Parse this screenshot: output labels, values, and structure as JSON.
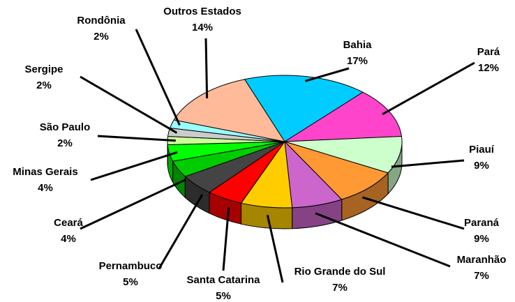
{
  "chart_data": {
    "type": "pie",
    "categories": [
      "Bahia",
      "Pará",
      "Piauí",
      "Paraná",
      "Maranhão",
      "Rio Grande do Sul",
      "Santa Catarina",
      "Pernambuco",
      "Ceará",
      "Minas Gerais",
      "São Paulo",
      "Sergipe",
      "Rondônia",
      "Outros Estados"
    ],
    "values": [
      17,
      12,
      9,
      9,
      7,
      7,
      5,
      5,
      4,
      4,
      2,
      2,
      2,
      14
    ],
    "value_labels": [
      "17%",
      "12%",
      "9%",
      "9%",
      "7%",
      "7%",
      "5%",
      "5%",
      "4%",
      "4%",
      "2%",
      "2%",
      "2%",
      "14%"
    ],
    "colors": [
      "#00ccff",
      "#ff44cc",
      "#ccffcc",
      "#ff9933",
      "#cc66cc",
      "#ffcc00",
      "#ff0000",
      "#444444",
      "#00cc00",
      "#00ff00",
      "#ccff99",
      "#cccccc",
      "#99ffff",
      "#ffbb99"
    ]
  }
}
